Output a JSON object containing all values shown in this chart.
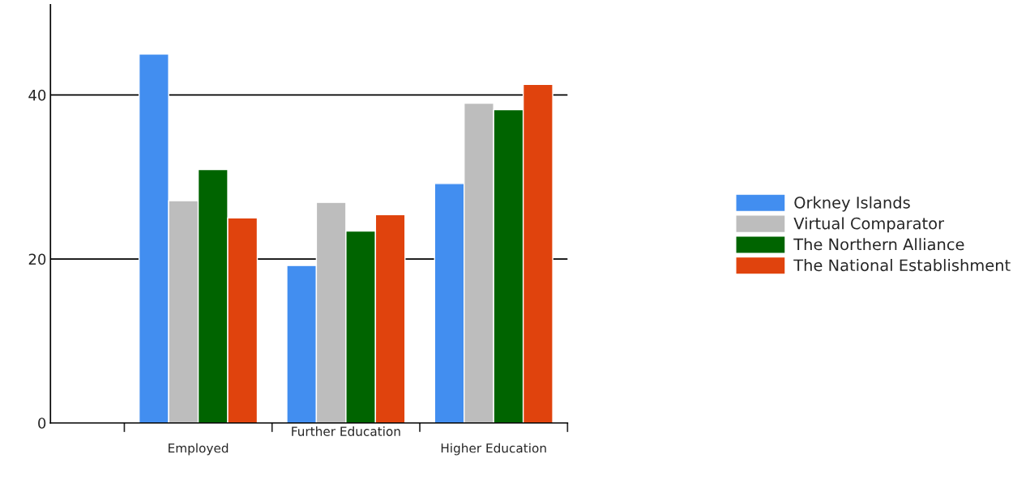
{
  "chart_data": {
    "type": "bar",
    "categories": [
      "Employed",
      "Further Education",
      "Higher Education"
    ],
    "series": [
      {
        "name": "Orkney Islands",
        "color": "#428ef0",
        "values": [
          45.0,
          19.2,
          29.2
        ]
      },
      {
        "name": "Virtual Comparator",
        "color": "#bdbdbd",
        "values": [
          27.1,
          26.9,
          39.0
        ]
      },
      {
        "name": "The Northern Alliance",
        "color": "#006400",
        "values": [
          30.9,
          23.4,
          38.2
        ]
      },
      {
        "name": "The National Establishment",
        "color": "#e0430d",
        "values": [
          25.0,
          25.4,
          41.3
        ]
      }
    ],
    "ylim": [
      0,
      51
    ],
    "yticks": [
      0,
      20,
      40
    ],
    "grid": "y",
    "legend": "right"
  }
}
